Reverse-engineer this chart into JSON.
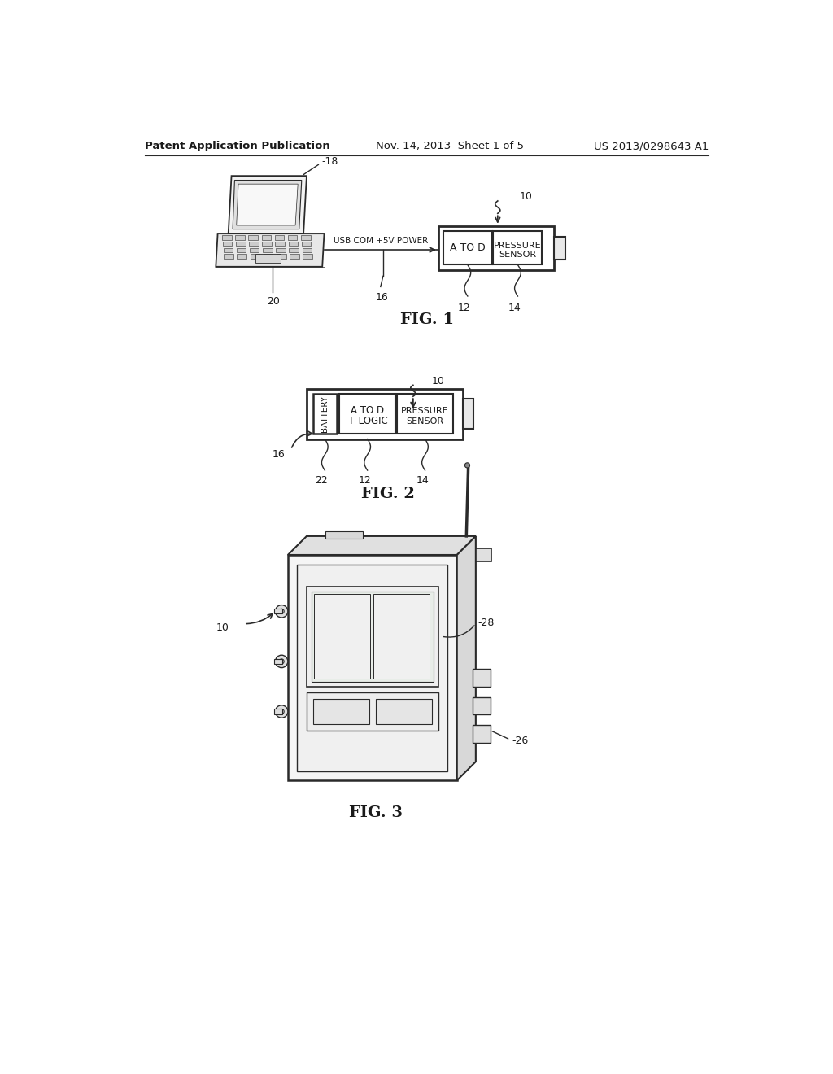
{
  "bg_color": "#ffffff",
  "header_left": "Patent Application Publication",
  "header_mid": "Nov. 14, 2013  Sheet 1 of 5",
  "header_right": "US 2013/0298643 A1",
  "fig1_label": "FIG. 1",
  "fig2_label": "FIG. 2",
  "fig3_label": "FIG. 3",
  "line_color": "#2a2a2a",
  "text_color": "#1a1a1a"
}
